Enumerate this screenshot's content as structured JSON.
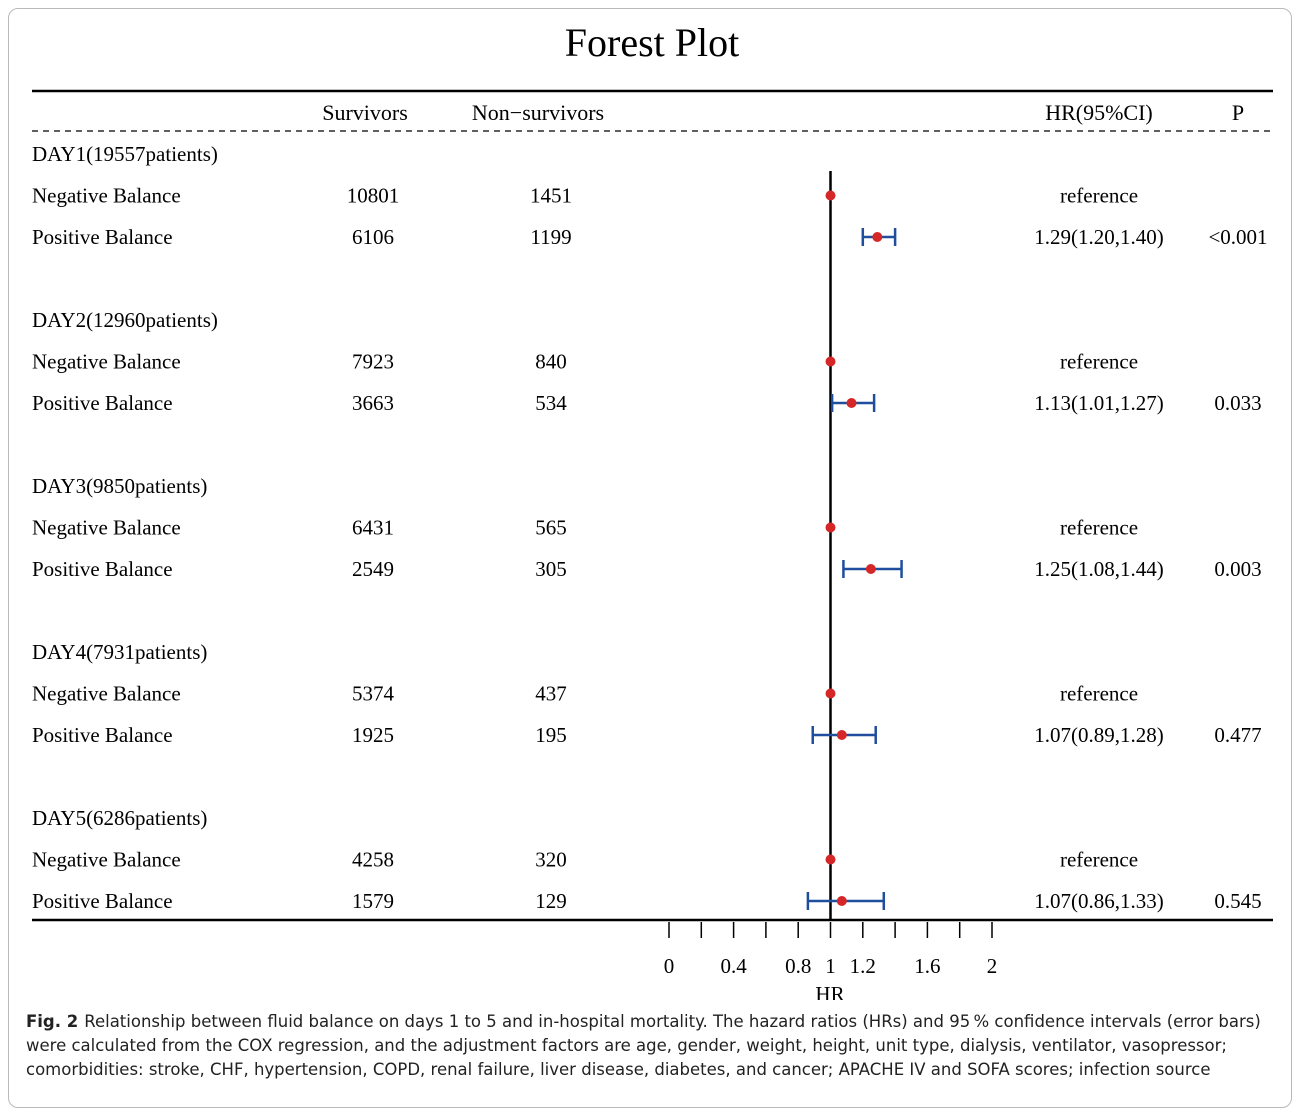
{
  "chart_data": {
    "type": "forest",
    "title": "Forest Plot",
    "columns": {
      "label": "",
      "survivors": "Survivors",
      "non_survivors": "Non−survivors",
      "hr_ci": "HR(95%CI)",
      "p": "P"
    },
    "xlabel": "HR",
    "xticks": [
      "0",
      "0.4",
      "0.8",
      "1",
      "1.2",
      "1.6",
      "2"
    ],
    "xtick_values": [
      0,
      0.4,
      0.8,
      1,
      1.2,
      1.6,
      2
    ],
    "minor_tick_values": [
      0.2,
      0.6,
      1.4,
      1.8
    ],
    "xlim": [
      0,
      2
    ],
    "reference_line": 1,
    "groups": [
      {
        "name": "DAY1(19557patients)",
        "rows": [
          {
            "label": "Negative Balance",
            "survivors": "10801",
            "non_survivors": "1451",
            "hr": 1,
            "ci": null,
            "hr_text": "reference",
            "p": ""
          },
          {
            "label": "Positive Balance",
            "survivors": "6106",
            "non_survivors": "1199",
            "hr": 1.29,
            "ci": [
              1.2,
              1.4
            ],
            "hr_text": "1.29(1.20,1.40)",
            "p": "<0.001"
          }
        ]
      },
      {
        "name": "DAY2(12960patients)",
        "rows": [
          {
            "label": "Negative Balance",
            "survivors": "7923",
            "non_survivors": "840",
            "hr": 1,
            "ci": null,
            "hr_text": "reference",
            "p": ""
          },
          {
            "label": "Positive Balance",
            "survivors": "3663",
            "non_survivors": "534",
            "hr": 1.13,
            "ci": [
              1.01,
              1.27
            ],
            "hr_text": "1.13(1.01,1.27)",
            "p": "0.033"
          }
        ]
      },
      {
        "name": "DAY3(9850patients)",
        "rows": [
          {
            "label": "Negative Balance",
            "survivors": "6431",
            "non_survivors": "565",
            "hr": 1,
            "ci": null,
            "hr_text": "reference",
            "p": ""
          },
          {
            "label": "Positive Balance",
            "survivors": "2549",
            "non_survivors": "305",
            "hr": 1.25,
            "ci": [
              1.08,
              1.44
            ],
            "hr_text": "1.25(1.08,1.44)",
            "p": "0.003"
          }
        ]
      },
      {
        "name": "DAY4(7931patients)",
        "rows": [
          {
            "label": "Negative Balance",
            "survivors": "5374",
            "non_survivors": "437",
            "hr": 1,
            "ci": null,
            "hr_text": "reference",
            "p": ""
          },
          {
            "label": "Positive Balance",
            "survivors": "1925",
            "non_survivors": "195",
            "hr": 1.07,
            "ci": [
              0.89,
              1.28
            ],
            "hr_text": "1.07(0.89,1.28)",
            "p": "0.477"
          }
        ]
      },
      {
        "name": "DAY5(6286patients)",
        "rows": [
          {
            "label": "Negative Balance",
            "survivors": "4258",
            "non_survivors": "320",
            "hr": 1,
            "ci": null,
            "hr_text": "reference",
            "p": ""
          },
          {
            "label": "Positive Balance",
            "survivors": "1579",
            "non_survivors": "129",
            "hr": 1.07,
            "ci": [
              0.86,
              1.33
            ],
            "hr_text": "1.07(0.86,1.33)",
            "p": "0.545"
          }
        ]
      }
    ],
    "colors": {
      "point": "#d62728",
      "ci": "#1f4e9c",
      "line": "#000000"
    }
  },
  "caption": {
    "label": "Fig. 2",
    "text": "Relationship between fluid balance on days 1 to 5 and in-hospital mortality. The hazard ratios (HRs) and 95 % confidence intervals (error bars) were calculated from the COX regression, and the adjustment factors are age, gender, weight, height, unit type, dialysis, ventilator, vasopressor; comorbidities: stroke, CHF, hypertension, COPD, renal failure, liver disease, diabetes, and cancer; APACHE IV and SOFA scores; infection source"
  }
}
